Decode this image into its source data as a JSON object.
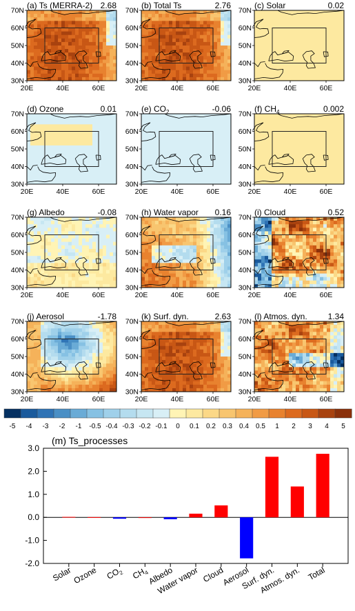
{
  "panels": [
    {
      "title": "(a) Ts (MERRA-2)",
      "value": "2.68",
      "pattern": "strong_warm"
    },
    {
      "title": "(b) Total Ts",
      "value": "2.76",
      "pattern": "strong_warm"
    },
    {
      "title": "(c) Solar",
      "value": "0.02",
      "pattern": "uniform_pale"
    },
    {
      "title": "(d) Ozone",
      "value": "0.01",
      "pattern": "ozone"
    },
    {
      "title": "(e) CO2",
      "title_main": "(e) CO",
      "title_sub": "2",
      "value": "-0.06",
      "pattern": "uniform_cool"
    },
    {
      "title": "(f) CH4",
      "title_main": "(f) CH",
      "title_sub": "4",
      "value": "0.002",
      "pattern": "uniform_pale"
    },
    {
      "title": "(g) Albedo",
      "value": "-0.08",
      "pattern": "albedo"
    },
    {
      "title": "(h) Water vapor",
      "value": "0.16",
      "pattern": "water_vapor"
    },
    {
      "title": "(i) Cloud",
      "value": "0.52",
      "pattern": "cloud"
    },
    {
      "title": "(j) Aerosol",
      "value": "-1.78",
      "pattern": "aerosol"
    },
    {
      "title": "(k) Surf. dyn.",
      "value": "2.63",
      "pattern": "strong_warm"
    },
    {
      "title": "(l) Atmos. dyn.",
      "value": "1.34",
      "pattern": "atmos"
    }
  ],
  "map_axes": {
    "x_ticks": [
      "20E",
      "40E",
      "60E"
    ],
    "y_ticks": [
      "70N",
      "60N",
      "50N",
      "40N",
      "30N"
    ],
    "lon_range": [
      20,
      70
    ],
    "lat_range": [
      30,
      70
    ],
    "box": {
      "lon": [
        30,
        60
      ],
      "lat": [
        40,
        60
      ]
    }
  },
  "colorbar": {
    "labels": [
      "-5",
      "-4",
      "-3",
      "-2",
      "-1",
      "-0.5",
      "-0.4",
      "-0.3",
      "-0.2",
      "-0.1",
      "0",
      "0.1",
      "0.2",
      "0.3",
      "0.4",
      "0.5",
      "1",
      "2",
      "3",
      "4",
      "5"
    ],
    "colors": [
      "#053061",
      "#1a5a9c",
      "#2f73b5",
      "#4a8fc5",
      "#6aabd6",
      "#86c1e3",
      "#9fd0ea",
      "#b4dcee",
      "#c6e6f2",
      "#d8eff6",
      "#fff4b5",
      "#fde9a0",
      "#fbd887",
      "#f8c56f",
      "#f5b25a",
      "#f19b45",
      "#e8822f",
      "#dc6a1f",
      "#c85715",
      "#a8420f",
      "#8a300a"
    ]
  },
  "chart_data": {
    "type": "bar",
    "title": "(m) Ts_processes",
    "categories": [
      "Solar",
      "Ozone",
      "CO2",
      "CH4",
      "Albedo",
      "Water vapor",
      "Cloud",
      "Aerosol",
      "Surf. dyn.",
      "Atmos. dyn.",
      "Total"
    ],
    "values": [
      0.02,
      0.01,
      -0.06,
      0.002,
      -0.08,
      0.16,
      0.52,
      -1.78,
      2.63,
      1.34,
      2.76
    ],
    "ylim": [
      -2.0,
      3.0
    ],
    "yticks": [
      "3.0",
      "2.0",
      "1.0",
      "0.0",
      "-1.0",
      "-2.0"
    ],
    "colors": {
      "positive": "#ff0000",
      "negative": "#0000ff"
    }
  }
}
